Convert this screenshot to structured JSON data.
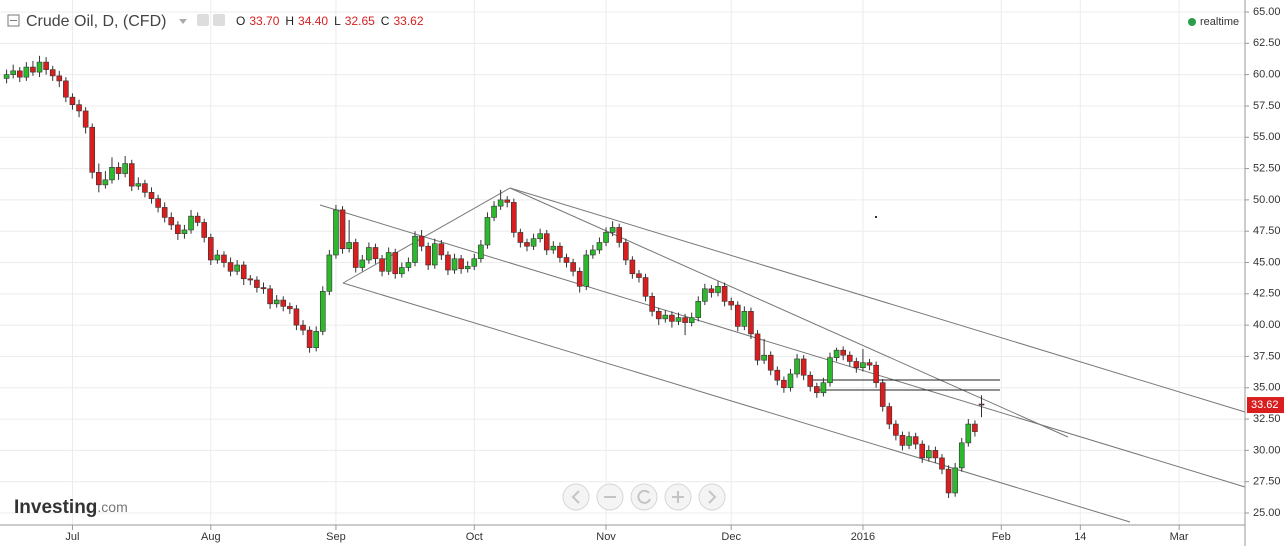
{
  "chart_data": {
    "type": "candlestick",
    "title": "Crude Oil, D, (CFD)",
    "ohlc_legend": [
      {
        "key": "O",
        "value": "33.70"
      },
      {
        "key": "H",
        "value": "34.40"
      },
      {
        "key": "L",
        "value": "32.65"
      },
      {
        "key": "C",
        "value": "33.62"
      }
    ],
    "status": "realtime",
    "watermark": "Investing",
    "watermark_suffix": ".com",
    "last_price": {
      "value": 33.62,
      "label": "33.62"
    },
    "up_color": "#2db92d",
    "down_color": "#d81e1e",
    "grid": true,
    "xlim": [
      -1,
      188
    ],
    "xticks": [
      {
        "value": 10,
        "label": "Jul"
      },
      {
        "value": 31,
        "label": "Aug"
      },
      {
        "value": 50,
        "label": "Sep"
      },
      {
        "value": 71,
        "label": "Oct"
      },
      {
        "value": 91,
        "label": "Nov"
      },
      {
        "value": 110,
        "label": "Dec"
      },
      {
        "value": 130,
        "label": "2016"
      },
      {
        "value": 151,
        "label": "Feb"
      },
      {
        "value": 163,
        "label": "14"
      },
      {
        "value": 178,
        "label": "Mar"
      }
    ],
    "ylim": [
      25,
      65
    ],
    "yticks": [
      {
        "value": 25,
        "label": "25.00"
      },
      {
        "value": 27.5,
        "label": "27.50"
      },
      {
        "value": 30,
        "label": "30.00"
      },
      {
        "value": 32.5,
        "label": "32.50"
      },
      {
        "value": 35,
        "label": "35.00"
      },
      {
        "value": 37.5,
        "label": "37.50"
      },
      {
        "value": 40,
        "label": "40.00"
      },
      {
        "value": 42.5,
        "label": "42.50"
      },
      {
        "value": 45,
        "label": "45.00"
      },
      {
        "value": 47.5,
        "label": "47.50"
      },
      {
        "value": 50,
        "label": "50.00"
      },
      {
        "value": 52.5,
        "label": "52.50"
      },
      {
        "value": 55,
        "label": "55.00"
      },
      {
        "value": 57.5,
        "label": "57.50"
      },
      {
        "value": 60,
        "label": "60.00"
      },
      {
        "value": 62.5,
        "label": "62.50"
      },
      {
        "value": 65,
        "label": "65.00"
      }
    ],
    "candles": [
      [
        59.7,
        60.4,
        59.3,
        60.0
      ],
      [
        60.0,
        60.8,
        59.7,
        60.3
      ],
      [
        60.3,
        60.6,
        59.4,
        59.8
      ],
      [
        59.8,
        61.0,
        59.5,
        60.6
      ],
      [
        60.6,
        61.1,
        59.9,
        60.2
      ],
      [
        60.2,
        61.5,
        59.8,
        61.0
      ],
      [
        61.0,
        61.4,
        60.0,
        60.4
      ],
      [
        60.4,
        60.7,
        59.5,
        59.9
      ],
      [
        59.9,
        60.3,
        59.0,
        59.5
      ],
      [
        59.5,
        59.8,
        57.8,
        58.2
      ],
      [
        58.2,
        58.5,
        57.2,
        57.6
      ],
      [
        57.6,
        58.0,
        56.6,
        57.1
      ],
      [
        57.1,
        57.4,
        55.3,
        55.8
      ],
      [
        55.8,
        56.1,
        51.7,
        52.2
      ],
      [
        52.2,
        52.9,
        50.6,
        51.2
      ],
      [
        51.2,
        52.3,
        50.9,
        51.6
      ],
      [
        51.6,
        53.4,
        51.3,
        52.6
      ],
      [
        52.6,
        53.0,
        51.6,
        52.1
      ],
      [
        52.1,
        53.5,
        51.8,
        52.9
      ],
      [
        52.9,
        53.2,
        50.7,
        51.1
      ],
      [
        51.1,
        51.8,
        50.8,
        51.3
      ],
      [
        51.3,
        51.6,
        50.2,
        50.6
      ],
      [
        50.6,
        51.0,
        49.7,
        50.1
      ],
      [
        50.1,
        50.4,
        49.0,
        49.4
      ],
      [
        49.4,
        49.8,
        48.2,
        48.6
      ],
      [
        48.6,
        49.0,
        47.6,
        48.0
      ],
      [
        48.0,
        48.3,
        46.8,
        47.3
      ],
      [
        47.3,
        48.0,
        46.9,
        47.6
      ],
      [
        47.6,
        49.2,
        47.3,
        48.7
      ],
      [
        48.7,
        49.0,
        47.9,
        48.2
      ],
      [
        48.2,
        48.5,
        46.6,
        47.0
      ],
      [
        47.0,
        47.3,
        44.8,
        45.2
      ],
      [
        45.2,
        46.0,
        44.9,
        45.6
      ],
      [
        45.6,
        45.9,
        44.6,
        45.0
      ],
      [
        45.0,
        45.4,
        43.9,
        44.3
      ],
      [
        44.3,
        45.2,
        44.0,
        44.8
      ],
      [
        44.8,
        45.1,
        43.2,
        43.7
      ],
      [
        43.7,
        44.0,
        43.2,
        43.6
      ],
      [
        43.6,
        43.9,
        42.6,
        43.0
      ],
      [
        43.0,
        43.4,
        42.5,
        42.9
      ],
      [
        42.9,
        43.2,
        41.3,
        41.7
      ],
      [
        41.7,
        42.4,
        41.4,
        42.0
      ],
      [
        42.0,
        42.3,
        41.1,
        41.5
      ],
      [
        41.5,
        41.8,
        40.9,
        41.3
      ],
      [
        41.3,
        41.6,
        39.6,
        40.0
      ],
      [
        40.0,
        40.4,
        39.2,
        39.6
      ],
      [
        39.6,
        39.9,
        37.8,
        38.2
      ],
      [
        38.2,
        39.9,
        37.9,
        39.5
      ],
      [
        39.5,
        43.1,
        39.2,
        42.7
      ],
      [
        42.7,
        46.0,
        42.4,
        45.6
      ],
      [
        45.6,
        49.6,
        45.3,
        49.2
      ],
      [
        49.2,
        49.5,
        45.7,
        46.1
      ],
      [
        46.1,
        48.4,
        45.8,
        46.6
      ],
      [
        46.6,
        46.9,
        44.2,
        44.6
      ],
      [
        44.6,
        45.6,
        44.3,
        45.2
      ],
      [
        45.2,
        46.6,
        44.9,
        46.2
      ],
      [
        46.2,
        46.5,
        44.9,
        45.3
      ],
      [
        45.3,
        45.6,
        43.9,
        44.3
      ],
      [
        44.3,
        46.2,
        44.0,
        45.8
      ],
      [
        45.8,
        46.1,
        43.7,
        44.1
      ],
      [
        44.1,
        45.0,
        43.8,
        44.6
      ],
      [
        44.6,
        45.4,
        44.3,
        45.0
      ],
      [
        45.0,
        47.5,
        44.7,
        47.1
      ],
      [
        47.1,
        47.6,
        45.9,
        46.3
      ],
      [
        46.3,
        46.6,
        44.4,
        44.8
      ],
      [
        44.8,
        46.9,
        44.5,
        46.5
      ],
      [
        46.5,
        46.8,
        45.2,
        45.6
      ],
      [
        45.6,
        45.9,
        44.0,
        44.4
      ],
      [
        44.4,
        45.7,
        44.1,
        45.3
      ],
      [
        45.3,
        45.6,
        44.1,
        44.5
      ],
      [
        44.5,
        45.1,
        44.2,
        44.7
      ],
      [
        44.7,
        45.7,
        44.4,
        45.3
      ],
      [
        45.3,
        46.8,
        45.0,
        46.4
      ],
      [
        46.4,
        49.0,
        46.1,
        48.6
      ],
      [
        48.6,
        49.9,
        48.3,
        49.5
      ],
      [
        49.5,
        50.8,
        49.2,
        50.0
      ],
      [
        50.0,
        50.3,
        49.4,
        49.8
      ],
      [
        49.8,
        50.1,
        47.0,
        47.4
      ],
      [
        47.4,
        47.7,
        46.2,
        46.6
      ],
      [
        46.6,
        46.9,
        45.9,
        46.3
      ],
      [
        46.3,
        47.3,
        46.0,
        46.9
      ],
      [
        46.9,
        47.7,
        46.6,
        47.3
      ],
      [
        47.3,
        47.6,
        45.6,
        46.0
      ],
      [
        46.0,
        46.7,
        45.7,
        46.3
      ],
      [
        46.3,
        46.6,
        45.0,
        45.4
      ],
      [
        45.4,
        45.7,
        44.6,
        45.0
      ],
      [
        45.0,
        45.3,
        43.9,
        44.3
      ],
      [
        44.3,
        44.6,
        42.6,
        43.1
      ],
      [
        43.1,
        46.0,
        42.8,
        45.6
      ],
      [
        45.6,
        46.4,
        45.3,
        46.0
      ],
      [
        46.0,
        47.0,
        45.7,
        46.6
      ],
      [
        46.6,
        47.8,
        46.3,
        47.4
      ],
      [
        47.4,
        48.3,
        47.1,
        47.8
      ],
      [
        47.8,
        48.1,
        46.2,
        46.6
      ],
      [
        46.6,
        46.9,
        44.8,
        45.2
      ],
      [
        45.2,
        45.5,
        43.7,
        44.1
      ],
      [
        44.1,
        44.4,
        43.4,
        43.8
      ],
      [
        43.8,
        44.1,
        41.9,
        42.3
      ],
      [
        42.3,
        42.6,
        40.7,
        41.1
      ],
      [
        41.1,
        41.4,
        40.0,
        40.5
      ],
      [
        40.5,
        41.2,
        40.2,
        40.8
      ],
      [
        40.8,
        41.1,
        39.8,
        40.3
      ],
      [
        40.3,
        41.0,
        40.0,
        40.6
      ],
      [
        40.6,
        40.9,
        39.2,
        40.2
      ],
      [
        40.2,
        41.0,
        39.9,
        40.6
      ],
      [
        40.6,
        42.3,
        40.3,
        41.9
      ],
      [
        41.9,
        43.3,
        41.6,
        42.9
      ],
      [
        42.9,
        43.2,
        42.2,
        42.6
      ],
      [
        42.6,
        43.5,
        42.3,
        43.1
      ],
      [
        43.1,
        43.4,
        41.5,
        41.9
      ],
      [
        41.9,
        42.2,
        41.2,
        41.6
      ],
      [
        41.6,
        41.9,
        39.5,
        39.9
      ],
      [
        39.9,
        41.5,
        39.6,
        41.1
      ],
      [
        41.1,
        41.4,
        38.9,
        39.3
      ],
      [
        39.3,
        39.6,
        36.8,
        37.2
      ],
      [
        37.2,
        38.9,
        36.9,
        37.6
      ],
      [
        37.6,
        37.9,
        36.0,
        36.4
      ],
      [
        36.4,
        36.7,
        35.2,
        35.6
      ],
      [
        35.6,
        35.9,
        34.6,
        35.0
      ],
      [
        35.0,
        36.5,
        34.7,
        36.1
      ],
      [
        36.1,
        37.7,
        35.8,
        37.3
      ],
      [
        37.3,
        37.6,
        35.6,
        36.0
      ],
      [
        36.0,
        36.3,
        34.7,
        35.1
      ],
      [
        35.1,
        35.4,
        34.2,
        34.6
      ],
      [
        34.6,
        35.8,
        34.3,
        35.4
      ],
      [
        35.4,
        37.8,
        35.1,
        37.4
      ],
      [
        37.4,
        38.2,
        37.1,
        38.0
      ],
      [
        38.0,
        38.3,
        37.2,
        37.6
      ],
      [
        37.6,
        37.9,
        36.7,
        37.1
      ],
      [
        37.1,
        37.4,
        36.2,
        36.6
      ],
      [
        36.6,
        38.1,
        36.3,
        37.0
      ],
      [
        37.0,
        37.3,
        36.4,
        36.8
      ],
      [
        36.8,
        37.1,
        35.0,
        35.4
      ],
      [
        35.4,
        35.7,
        33.1,
        33.5
      ],
      [
        33.5,
        33.8,
        31.7,
        32.1
      ],
      [
        32.1,
        32.4,
        30.8,
        31.2
      ],
      [
        31.2,
        31.5,
        30.0,
        30.4
      ],
      [
        30.4,
        31.5,
        30.1,
        31.1
      ],
      [
        31.1,
        31.4,
        30.1,
        30.5
      ],
      [
        30.5,
        30.8,
        29.0,
        29.4
      ],
      [
        29.4,
        30.4,
        29.1,
        30.0
      ],
      [
        30.0,
        30.3,
        29.0,
        29.4
      ],
      [
        29.4,
        29.7,
        28.1,
        28.5
      ],
      [
        28.5,
        28.8,
        26.2,
        26.6
      ],
      [
        26.6,
        29.0,
        26.3,
        28.6
      ],
      [
        28.6,
        31.0,
        28.3,
        30.6
      ],
      [
        30.6,
        32.5,
        30.3,
        32.1
      ],
      [
        32.1,
        32.4,
        31.1,
        31.5
      ],
      [
        33.7,
        34.4,
        32.65,
        33.62
      ]
    ]
  }
}
